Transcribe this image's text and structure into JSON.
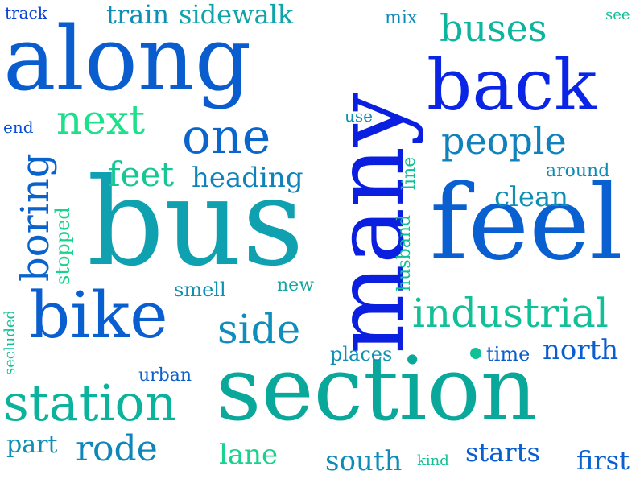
{
  "palette": {
    "background": "#ffffff",
    "deep_blue": "#0a1fe0",
    "royal_blue": "#0a5fd0",
    "steel_blue": "#1670c8",
    "teal_blue": "#0f8fb5",
    "teal": "#07a89f",
    "sea_green": "#12c095",
    "mint": "#1fe089"
  },
  "words": [
    {
      "text": "many",
      "color": "#0a1fe0",
      "weight": 118
    },
    {
      "text": "bus",
      "color": "#0fa1b0",
      "weight": 150
    },
    {
      "text": "section",
      "color": "#0aa89b",
      "weight": 110
    },
    {
      "text": "feel",
      "color": "#0a60d0",
      "weight": 128
    },
    {
      "text": "along",
      "color": "#0a5dcf",
      "weight": 110
    },
    {
      "text": "back",
      "color": "#0a25e6",
      "weight": 88
    },
    {
      "text": "bike",
      "color": "#0a5fd0",
      "weight": 80
    },
    {
      "text": "station",
      "color": "#0bb29c",
      "weight": 62
    },
    {
      "text": "industrial",
      "color": "#11c097",
      "weight": 50
    },
    {
      "text": "one",
      "color": "#0a66cc",
      "weight": 60
    },
    {
      "text": "people",
      "color": "#0f82bb",
      "weight": 46
    },
    {
      "text": "buses",
      "color": "#0db59f",
      "weight": 46
    },
    {
      "text": "next",
      "color": "#1de08a",
      "weight": 50
    },
    {
      "text": "boring",
      "color": "#0a63cd",
      "weight": 48
    },
    {
      "text": "side",
      "color": "#0f8ebb",
      "weight": 50
    },
    {
      "text": "rode",
      "color": "#0f86b9",
      "weight": 44
    },
    {
      "text": "feet",
      "color": "#14c794",
      "weight": 42
    },
    {
      "text": "heading",
      "color": "#0f82bb",
      "weight": 34
    },
    {
      "text": "clean",
      "color": "#0f90b3",
      "weight": 34
    },
    {
      "text": "north",
      "color": "#0a5dcf",
      "weight": 34
    },
    {
      "text": "train",
      "color": "#0f8fb5",
      "weight": 32
    },
    {
      "text": "sidewalk",
      "color": "#0fa4a9",
      "weight": 32
    },
    {
      "text": "part",
      "color": "#0f8fb5",
      "weight": 30
    },
    {
      "text": "lane",
      "color": "#1ad28e",
      "weight": 34
    },
    {
      "text": "south",
      "color": "#0f8bb7",
      "weight": 34
    },
    {
      "text": "starts",
      "color": "#0a5fd0",
      "weight": 32
    },
    {
      "text": "first",
      "color": "#0a5fd0",
      "weight": 32
    },
    {
      "text": "stopped",
      "color": "#1ad28e",
      "weight": 24
    },
    {
      "text": "husband",
      "color": "#12c095",
      "weight": 22
    },
    {
      "text": "line",
      "color": "#12c095",
      "weight": 22
    },
    {
      "text": "smell",
      "color": "#0f90b3",
      "weight": 24
    },
    {
      "text": "new",
      "color": "#0fa6a3",
      "weight": 22
    },
    {
      "text": "places",
      "color": "#0f90b3",
      "weight": 24
    },
    {
      "text": "time",
      "color": "#0a5dcf",
      "weight": 24
    },
    {
      "text": "urban",
      "color": "#0a60cd",
      "weight": 22
    },
    {
      "text": "around",
      "color": "#0f8bb7",
      "weight": 22
    },
    {
      "text": "use",
      "color": "#0f8fb5",
      "weight": 20
    },
    {
      "text": "mix",
      "color": "#0f8bb7",
      "weight": 22
    },
    {
      "text": "see",
      "color": "#12c095",
      "weight": 18
    },
    {
      "text": "track",
      "color": "#0a3fd8",
      "weight": 20
    },
    {
      "text": "end",
      "color": "#0a4fd6",
      "weight": 20
    },
    {
      "text": "secluded",
      "color": "#12c095",
      "weight": 18
    },
    {
      "text": "kind",
      "color": "#12c095",
      "weight": 18
    }
  ]
}
